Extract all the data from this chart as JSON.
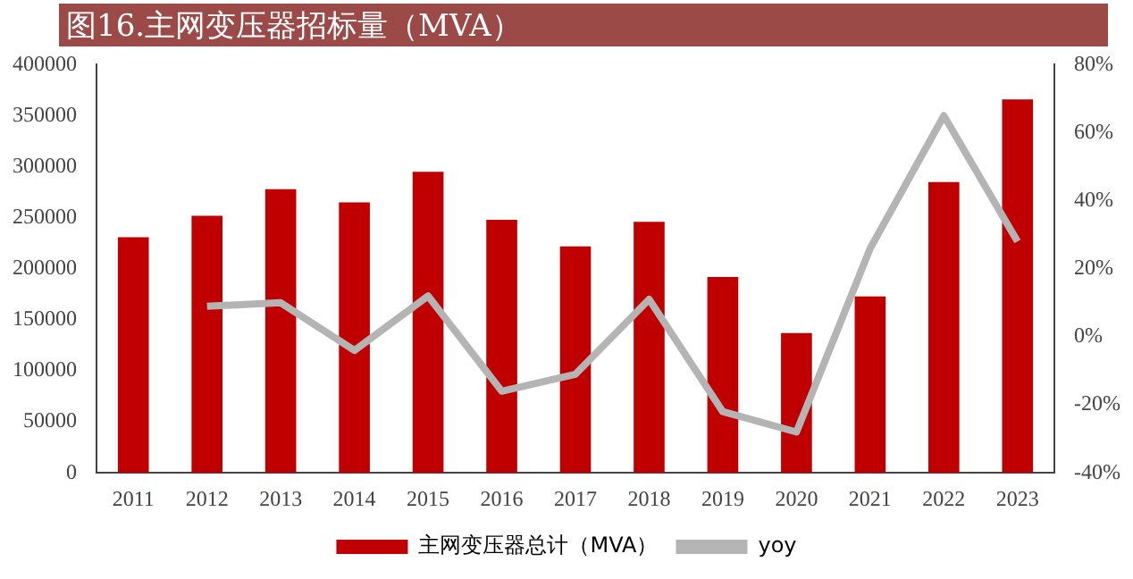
{
  "chart_data": {
    "type": "bar",
    "title": "图16.主网变压器招标量（MVA）",
    "categories": [
      "2011",
      "2012",
      "2013",
      "2014",
      "2015",
      "2016",
      "2017",
      "2018",
      "2019",
      "2020",
      "2021",
      "2022",
      "2023"
    ],
    "series": [
      {
        "name": "主网变压器总计（MVA）",
        "color": "#c00000",
        "values": [
          231000,
          252000,
          278000,
          265000,
          295000,
          248000,
          222000,
          246000,
          192000,
          137000,
          173000,
          285000,
          366000
        ]
      },
      {
        "name": "yoy",
        "type": "line",
        "axis": "y2",
        "color": "#b4b4b4",
        "values": [
          null,
          9,
          10,
          -4,
          12,
          -16,
          -11,
          11,
          -22,
          -28,
          26,
          65,
          28
        ]
      }
    ],
    "ylim": [
      0,
      400000
    ],
    "yticks": [
      0,
      50000,
      100000,
      150000,
      200000,
      250000,
      300000,
      350000,
      400000
    ],
    "y2lim": [
      -40,
      80
    ],
    "y2ticks": [
      {
        "value": -40,
        "label": "-40%"
      },
      {
        "value": -20,
        "label": "-20%"
      },
      {
        "value": 0,
        "label": "0%"
      },
      {
        "value": 20,
        "label": "20%"
      },
      {
        "value": 40,
        "label": "40%"
      },
      {
        "value": 60,
        "label": "60%"
      },
      {
        "value": 80,
        "label": "80%"
      }
    ],
    "grid": false,
    "legend": "bottom",
    "marker": "none"
  }
}
